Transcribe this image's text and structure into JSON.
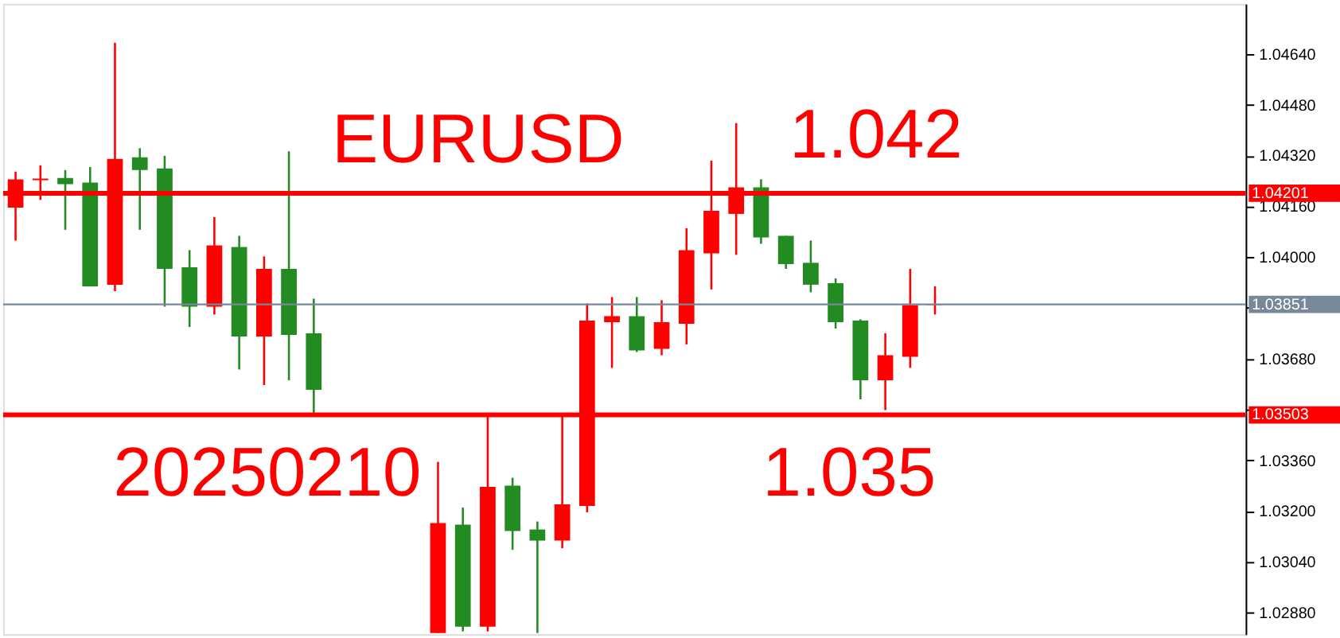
{
  "chart_data": {
    "type": "candlestick",
    "annotations": [
      "EURUSD",
      "1.042",
      "20250210",
      "1.035"
    ],
    "categories": [
      null,
      null,
      null,
      null,
      null,
      null,
      null,
      null,
      null,
      null,
      null,
      null,
      null,
      null,
      null,
      null,
      null,
      null,
      null,
      null,
      null,
      null,
      null,
      null,
      null,
      null,
      null,
      null,
      null,
      null,
      null,
      null,
      null,
      null,
      null,
      null,
      null,
      null,
      null,
      null,
      null,
      null,
      null,
      null,
      null,
      null,
      null,
      null,
      null,
      null
    ],
    "ohlc": [
      [
        1.04156,
        1.04269,
        1.04052,
        1.04245
      ],
      [
        1.04242,
        1.04289,
        1.0418,
        1.04247
      ],
      [
        1.04249,
        1.04274,
        1.04086,
        1.0423
      ],
      [
        1.04235,
        1.04284,
        1.03908,
        1.03908
      ],
      [
        1.03913,
        1.04675,
        1.03893,
        1.04309
      ],
      [
        1.04314,
        1.04343,
        1.04086,
        1.04274
      ],
      [
        1.04279,
        1.04319,
        1.03844,
        1.03963
      ],
      [
        1.03968,
        1.04022,
        1.0378,
        1.03844
      ],
      [
        1.03844,
        1.04126,
        1.03819,
        1.04037
      ],
      [
        1.04032,
        1.04067,
        1.03646,
        1.0375
      ],
      [
        1.0375,
        1.04002,
        1.03597,
        1.03963
      ],
      [
        1.03963,
        1.04333,
        1.03612,
        1.03755
      ],
      [
        1.0376,
        1.03869,
        1.03503,
        1.03582
      ],
      null,
      null,
      null,
      null,
      [
        1.02816,
        1.03355,
        1.02816,
        1.03162
      ],
      [
        1.03157,
        1.03211,
        1.02821,
        1.02836
      ],
      [
        1.02836,
        1.03498,
        1.02821,
        1.03276
      ],
      [
        1.0328,
        1.03305,
        1.03078,
        1.03137
      ],
      [
        1.03142,
        1.03167,
        1.02816,
        1.03107
      ],
      [
        1.03107,
        1.03498,
        1.03083,
        1.03221
      ],
      [
        1.03216,
        1.03854,
        1.03196,
        1.038
      ],
      [
        1.03795,
        1.03874,
        1.03651,
        1.03814
      ],
      [
        1.03814,
        1.03874,
        1.03701,
        1.03706
      ],
      [
        1.03711,
        1.03864,
        1.03691,
        1.03795
      ],
      [
        1.0379,
        1.04091,
        1.03725,
        1.04022
      ],
      [
        1.04012,
        1.04304,
        1.03898,
        1.04146
      ],
      [
        1.04136,
        1.04422,
        1.04007,
        1.0422
      ],
      [
        1.0422,
        1.04245,
        1.04042,
        1.04062
      ],
      [
        1.04067,
        1.04067,
        1.03963,
        1.03978
      ],
      [
        1.03982,
        1.04052,
        1.03889,
        1.03913
      ],
      [
        1.03918,
        1.03933,
        1.03775,
        1.03795
      ],
      [
        1.038,
        1.03804,
        1.03552,
        1.03612
      ],
      [
        1.03612,
        1.0376,
        1.03518,
        1.03691
      ],
      [
        1.03686,
        1.03963,
        1.03651,
        1.03849
      ],
      [
        1.03849,
        1.03908,
        1.03819,
        1.03851
      ],
      null,
      null,
      null,
      null,
      null,
      null,
      null,
      null,
      null,
      null,
      null,
      null
    ],
    "colors": [
      "#ff0000",
      "#ff0000",
      "#228b22",
      "#228b22",
      "#ff0000",
      "#228b22",
      "#228b22",
      "#228b22",
      "#ff0000",
      "#228b22",
      "#ff0000",
      "#228b22",
      "#228b22",
      null,
      null,
      null,
      null,
      "#ff0000",
      "#228b22",
      "#ff0000",
      "#228b22",
      "#228b22",
      "#ff0000",
      "#ff0000",
      "#ff0000",
      "#228b22",
      "#ff0000",
      "#ff0000",
      "#ff0000",
      "#ff0000",
      "#228b22",
      "#228b22",
      "#228b22",
      "#228b22",
      "#228b22",
      "#ff0000",
      "#ff0000",
      "#ff0000",
      null,
      null,
      null,
      null,
      null,
      null,
      null,
      null,
      null,
      null,
      null,
      null
    ],
    "ylim": [
      1.02812,
      1.04798
    ],
    "yticks": [
      {
        "value": 1.0288,
        "label": "1.02880"
      },
      {
        "value": 1.0304,
        "label": "1.03040"
      },
      {
        "value": 1.032,
        "label": "1.03200"
      },
      {
        "value": 1.0336,
        "label": "1.03360"
      },
      {
        "value": 1.0352,
        "label": null
      },
      {
        "value": 1.0368,
        "label": "1.03680"
      },
      {
        "value": 1.0384,
        "label": null
      },
      {
        "value": 1.04,
        "label": "1.04000"
      },
      {
        "value": 1.0416,
        "label": "1.04160"
      },
      {
        "value": 1.0432,
        "label": "1.04320"
      },
      {
        "value": 1.0448,
        "label": "1.04480"
      },
      {
        "value": 1.0464,
        "label": "1.04640"
      }
    ],
    "ref_lines": [
      {
        "axis": "y",
        "value": 1.04201,
        "label": "1.04201",
        "color": "#ff0000"
      },
      {
        "axis": "y",
        "value": 1.03503,
        "label": "1.03503",
        "color": "#ff0000"
      },
      {
        "axis": "y",
        "value": 1.03851,
        "label": "1.03851",
        "color": "#778899"
      }
    ],
    "grid": false,
    "tick_labels": "y"
  }
}
